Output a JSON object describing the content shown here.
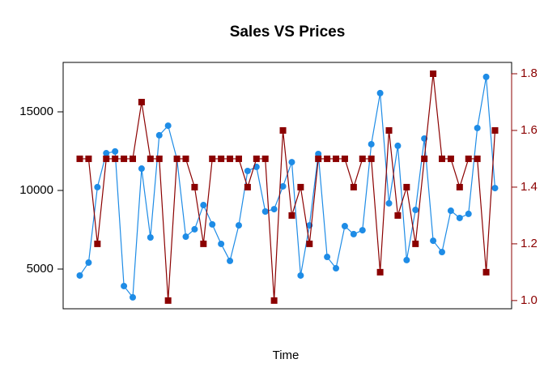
{
  "chart_data": {
    "type": "line",
    "title": "Sales VS Prices",
    "xlabel": "Time",
    "x": [
      1,
      2,
      3,
      4,
      5,
      6,
      7,
      8,
      9,
      10,
      11,
      12,
      13,
      14,
      15,
      16,
      17,
      18,
      19,
      20,
      21,
      22,
      23,
      24,
      25,
      26,
      27,
      28,
      29,
      30,
      31,
      32,
      33,
      34,
      35,
      36,
      37,
      38,
      39,
      40,
      41,
      42,
      43,
      44,
      45,
      46,
      47,
      48
    ],
    "xlim": [
      -0.88,
      49.88
    ],
    "ylim": [
      2474,
      18144
    ],
    "yticks": [
      5000,
      10000,
      15000
    ],
    "y2lim": [
      0.971,
      1.84
    ],
    "y2ticks": [
      {
        "value": 1,
        "label": "1.0"
      },
      1.2,
      1.4,
      1.6,
      1.8
    ],
    "y2color": "#8b0000",
    "series": [
      {
        "color": "#1e8ce6",
        "marker": "circle",
        "values": [
          4590,
          5410,
          10210,
          12370,
          12480,
          3920,
          3200,
          11390,
          7010,
          13510,
          14120,
          12000,
          7060,
          7530,
          9070,
          7840,
          6600,
          5520,
          7780,
          11240,
          11500,
          8660,
          8810,
          10260,
          11800,
          4590,
          7780,
          12320,
          5770,
          5050,
          7730,
          7220,
          7470,
          12940,
          16190,
          9180,
          12840,
          5570,
          8760,
          13300,
          6800,
          6080,
          8710,
          8250,
          8510,
          13970,
          17220,
          10150
        ]
      },
      {
        "color": "#8b0000",
        "marker": "square",
        "axis": "y2",
        "values": [
          1.5,
          1.5,
          1.2,
          1.5,
          1.5,
          1.5,
          1.5,
          1.7,
          1.5,
          1.5,
          1.0,
          1.5,
          1.5,
          1.4,
          1.2,
          1.5,
          1.5,
          1.5,
          1.5,
          1.4,
          1.5,
          1.5,
          1.0,
          1.6,
          1.3,
          1.4,
          1.2,
          1.5,
          1.5,
          1.5,
          1.5,
          1.4,
          1.5,
          1.5,
          1.1,
          1.6,
          1.3,
          1.4,
          1.2,
          1.5,
          1.8,
          1.5,
          1.5,
          1.4,
          1.5,
          1.5,
          1.1,
          1.6
        ]
      }
    ]
  }
}
